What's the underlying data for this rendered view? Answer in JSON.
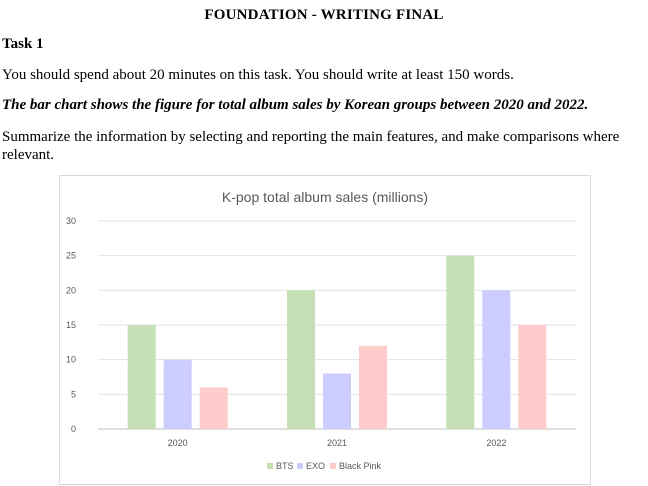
{
  "document": {
    "title": "FOUNDATION - WRITING FINAL",
    "task_heading": "Task 1",
    "instruction": "You should spend about 20 minutes on this task. You should write at least 150 words.",
    "prompt": "The bar chart shows the figure for total album sales by Korean groups between 2020 and 2022.",
    "task": "Summarize the information by selecting and reporting the main features, and make comparisons where relevant."
  },
  "chart_data": {
    "type": "bar",
    "title": "K-pop total album sales (millions)",
    "categories": [
      "2020",
      "2021",
      "2022"
    ],
    "series": [
      {
        "name": "BTS",
        "values": [
          15,
          20,
          25
        ],
        "color": "#c5e0b4"
      },
      {
        "name": "EXO",
        "values": [
          10,
          8,
          20
        ],
        "color": "#ccccff"
      },
      {
        "name": "Black Pink",
        "values": [
          6,
          12,
          15
        ],
        "color": "#ffcccc"
      }
    ],
    "ylim": [
      0,
      30
    ],
    "yticks": [
      "0",
      "5",
      "10",
      "15",
      "20",
      "25",
      "30"
    ],
    "grid": true,
    "legend": "bottom"
  }
}
